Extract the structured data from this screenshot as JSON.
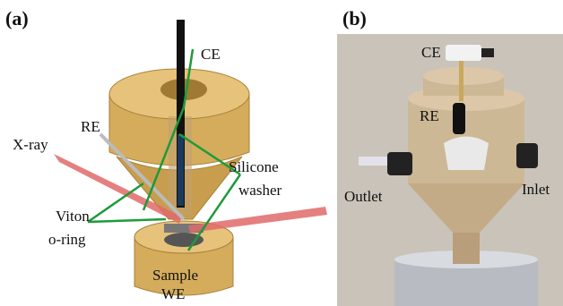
{
  "panel_a": {
    "label": "(a)",
    "ce": "CE",
    "re": "RE",
    "xray": "X-ray",
    "silicone_washer": [
      "Silicone",
      "washer"
    ],
    "viton_oring": [
      "Viton",
      "o-ring"
    ],
    "sample_we": [
      "Sample",
      "WE"
    ]
  },
  "panel_b": {
    "label": "(b)",
    "ce": "CE",
    "re": "RE",
    "outlet": "Outlet",
    "inlet": "Inlet"
  }
}
